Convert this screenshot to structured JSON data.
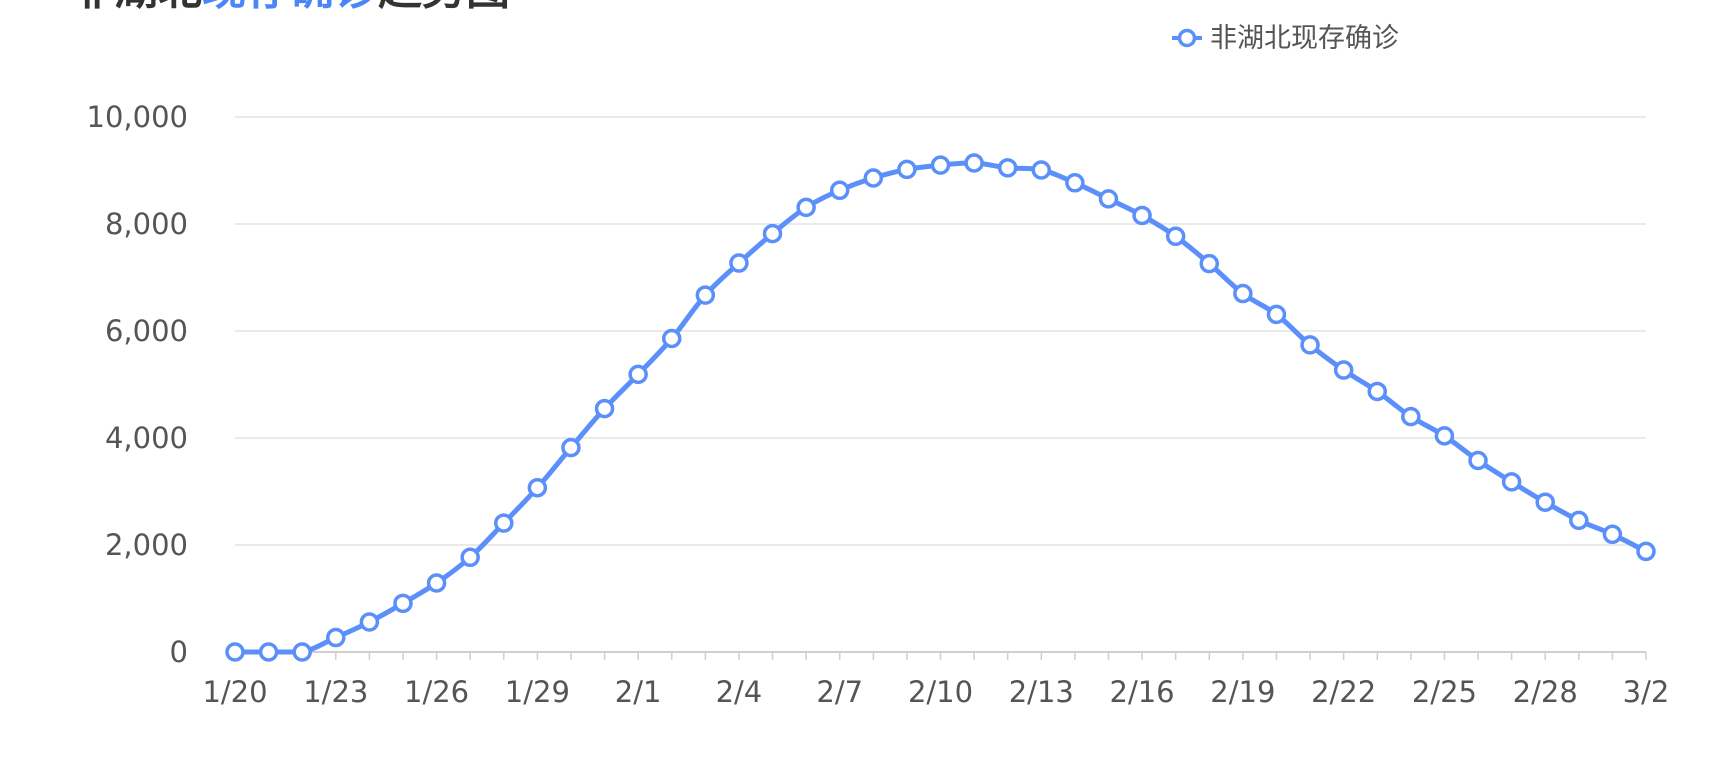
{
  "header": {
    "title_prefix": "非湖北",
    "title_highlight": "现存确诊",
    "title_suffix": "趋势图"
  },
  "legend": {
    "label": "非湖北现存确诊",
    "placement": "top-right"
  },
  "colors": {
    "series": "#5b8ff9",
    "title_highlight": "#4a86f7",
    "title": "#333333",
    "grid": "#e3e3e3",
    "axis_text": "#555555"
  },
  "chart_data": {
    "type": "line",
    "smooth": true,
    "markers": "hollow-circle",
    "grid": true,
    "title": "非湖北现存确诊趋势图",
    "xlabel": "",
    "ylabel": "",
    "ylim": [
      0,
      10000
    ],
    "yticks": [
      0,
      2000,
      4000,
      6000,
      8000,
      10000
    ],
    "ytick_labels": [
      "0",
      "2,000",
      "4,000",
      "6,000",
      "8,000",
      "10,000"
    ],
    "xtick_labels": [
      "1/20",
      "1/23",
      "1/26",
      "1/29",
      "2/1",
      "2/4",
      "2/7",
      "2/10",
      "2/13",
      "2/16",
      "2/19",
      "2/22",
      "2/25",
      "2/28",
      "3/2"
    ],
    "categories": [
      "1/20",
      "1/21",
      "1/22",
      "1/23",
      "1/24",
      "1/25",
      "1/26",
      "1/27",
      "1/28",
      "1/29",
      "1/30",
      "1/31",
      "2/1",
      "2/2",
      "2/3",
      "2/4",
      "2/5",
      "2/6",
      "2/7",
      "2/8",
      "2/9",
      "2/10",
      "2/11",
      "2/12",
      "2/13",
      "2/14",
      "2/15",
      "2/16",
      "2/17",
      "2/18",
      "2/19",
      "2/20",
      "2/21",
      "2/22",
      "2/23",
      "2/24",
      "2/25",
      "2/26",
      "2/27",
      "2/28",
      "2/29",
      "3/1",
      "3/2"
    ],
    "series": [
      {
        "name": "非湖北现存确诊",
        "values": [
          0,
          0,
          0,
          270,
          560,
          910,
          1290,
          1770,
          2410,
          3070,
          3820,
          4550,
          5190,
          5860,
          6670,
          7270,
          7820,
          8310,
          8630,
          8860,
          9020,
          9100,
          9140,
          9050,
          9010,
          8770,
          8470,
          8160,
          7770,
          7260,
          6700,
          6310,
          5740,
          5270,
          4870,
          4400,
          4040,
          3580,
          3180,
          2800,
          2460,
          2200,
          1880
        ]
      }
    ]
  }
}
